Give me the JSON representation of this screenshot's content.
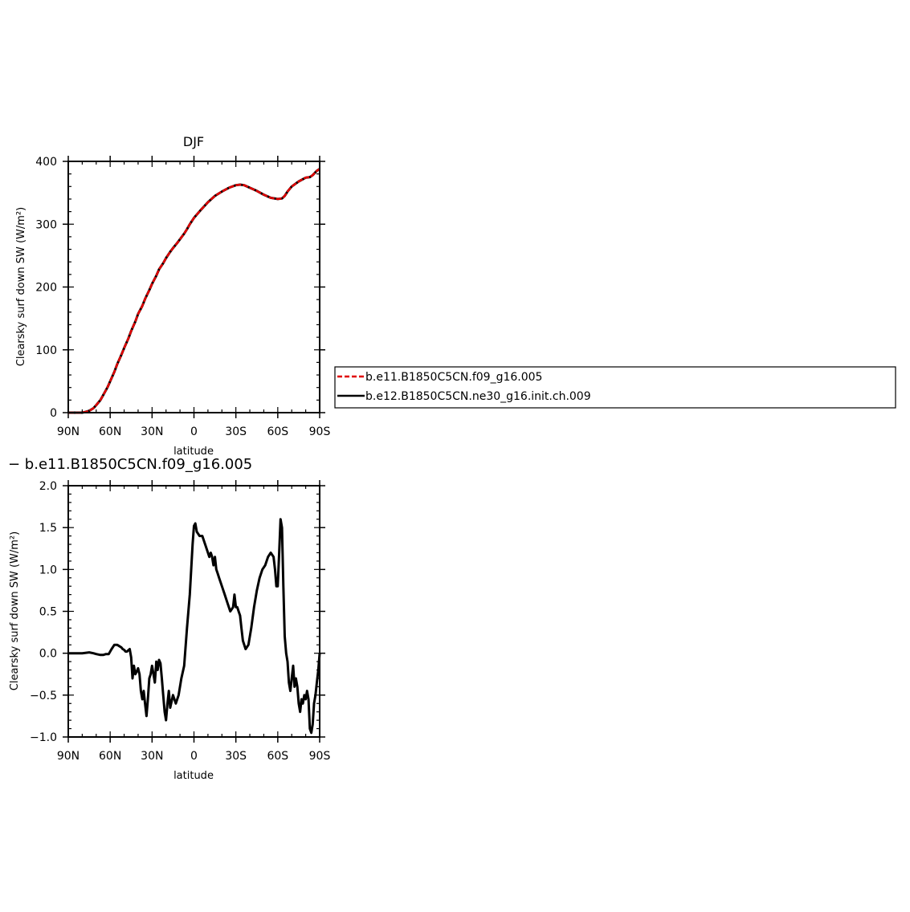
{
  "chart_data": [
    {
      "type": "line",
      "title": "DJF",
      "xlabel": "latitude",
      "ylabel": "Clearsky surf down SW (W/m²)",
      "xlim": [
        90,
        -90
      ],
      "ylim": [
        0,
        400
      ],
      "xticks": [
        90,
        60,
        30,
        0,
        -30,
        -60,
        -90
      ],
      "xtick_labels": [
        "90N",
        "60N",
        "30N",
        "0",
        "30S",
        "60S",
        "90S"
      ],
      "yticks": [
        0,
        100,
        200,
        300,
        400
      ],
      "ytick_labels": [
        "0",
        "100",
        "200",
        "300",
        "400"
      ],
      "legend_position": "right",
      "series": [
        {
          "name": "b.e11.B1850C5CN.f09_g16.005",
          "color": "#e00000",
          "dash": true,
          "x": [
            90,
            85,
            80,
            78,
            75,
            72,
            70,
            67,
            65,
            62,
            60,
            57,
            55,
            52,
            50,
            47,
            45,
            42,
            40,
            37,
            35,
            32,
            30,
            27,
            25,
            22,
            20,
            17,
            15,
            12,
            10,
            7,
            5,
            3,
            0,
            -5,
            -10,
            -15,
            -20,
            -25,
            -30,
            -33,
            -36,
            -40,
            -45,
            -50,
            -55,
            -60,
            -63,
            -65,
            -67,
            -70,
            -75,
            -80,
            -83,
            -85,
            -88,
            -90
          ],
          "y": [
            0,
            0,
            0,
            1,
            3,
            7,
            12,
            20,
            28,
            40,
            50,
            65,
            77,
            92,
            103,
            118,
            130,
            145,
            157,
            170,
            181,
            195,
            205,
            218,
            228,
            238,
            246,
            256,
            262,
            270,
            276,
            285,
            292,
            300,
            310,
            323,
            335,
            345,
            352,
            358,
            362,
            363,
            362,
            358,
            353,
            347,
            342,
            340,
            341,
            345,
            352,
            360,
            368,
            374,
            375,
            378,
            385,
            388
          ]
        },
        {
          "name": "b.e12.B1850C5CN.ne30_g16.init.ch.009",
          "color": "#000000",
          "dash": false,
          "x": [
            90,
            85,
            80,
            78,
            75,
            72,
            70,
            67,
            65,
            62,
            60,
            57,
            55,
            52,
            50,
            47,
            45,
            42,
            40,
            37,
            35,
            32,
            30,
            27,
            25,
            22,
            20,
            17,
            15,
            12,
            10,
            7,
            5,
            3,
            0,
            -5,
            -10,
            -15,
            -20,
            -25,
            -30,
            -33,
            -36,
            -40,
            -45,
            -50,
            -55,
            -60,
            -63,
            -65,
            -67,
            -70,
            -75,
            -80,
            -83,
            -85,
            -88,
            -90
          ],
          "y": [
            0,
            0,
            0,
            1,
            3,
            7,
            12,
            20,
            28,
            40,
            50,
            65,
            77,
            92,
            103,
            118,
            130,
            145,
            157,
            170,
            181,
            195,
            205,
            218,
            228,
            238,
            246,
            256,
            262,
            270,
            276,
            285,
            292,
            300,
            310,
            323,
            335,
            345,
            352,
            358,
            362,
            363,
            362,
            358,
            353,
            347,
            342,
            340,
            341,
            345,
            352,
            360,
            368,
            374,
            375,
            378,
            385,
            388
          ]
        }
      ]
    },
    {
      "type": "line",
      "title": "− b.e11.B1850C5CN.f09_g16.005",
      "xlabel": "latitude",
      "ylabel": "Clearsky surf down SW (W/m²)",
      "xlim": [
        90,
        -90
      ],
      "ylim": [
        -1.0,
        2.0
      ],
      "xticks": [
        90,
        60,
        30,
        0,
        -30,
        -60,
        -90
      ],
      "xtick_labels": [
        "90N",
        "60N",
        "30N",
        "0",
        "30S",
        "60S",
        "90S"
      ],
      "yticks": [
        -1.0,
        -0.5,
        0.0,
        0.5,
        1.0,
        1.5,
        2.0
      ],
      "ytick_labels": [
        "−1.0",
        "−0.5",
        "0.0",
        "0.5",
        "1.0",
        "1.5",
        "2.0"
      ],
      "series": [
        {
          "color": "#000000",
          "x": [
            90,
            85,
            80,
            75,
            72,
            70,
            67,
            65,
            63,
            61,
            59,
            57,
            55,
            53,
            52,
            51,
            50,
            49,
            48,
            46,
            45,
            44,
            43,
            42,
            41,
            40,
            39,
            38,
            37,
            36,
            35,
            34,
            33,
            32,
            31,
            30,
            29,
            28,
            27,
            26,
            25,
            24,
            23,
            22,
            21,
            20,
            19,
            18,
            17,
            15,
            13,
            11,
            9,
            7,
            5,
            3,
            1,
            0,
            -1,
            -2,
            -4,
            -6,
            -8,
            -10,
            -11,
            -12,
            -13,
            -14,
            -15,
            -16,
            -17,
            -18,
            -20,
            -22,
            -24,
            -26,
            -28,
            -29,
            -30,
            -31,
            -32,
            -33,
            -34,
            -35,
            -37,
            -39,
            -41,
            -43,
            -45,
            -47,
            -49,
            -51,
            -53,
            -55,
            -57,
            -58,
            -59,
            -60,
            -61,
            -62,
            -63,
            -64,
            -65,
            -66,
            -67,
            -68,
            -69,
            -70,
            -71,
            -72,
            -73,
            -74,
            -75,
            -76,
            -77,
            -78,
            -79,
            -80,
            -81,
            -82,
            -83,
            -84,
            -85,
            -86,
            -87,
            -88,
            -89,
            -90
          ],
          "y": [
            0.0,
            0.0,
            0.0,
            0.01,
            0.0,
            -0.01,
            -0.02,
            -0.02,
            -0.01,
            -0.01,
            0.05,
            0.1,
            0.1,
            0.08,
            0.07,
            0.05,
            0.04,
            0.02,
            0.02,
            0.05,
            -0.05,
            -0.3,
            -0.15,
            -0.25,
            -0.22,
            -0.18,
            -0.25,
            -0.45,
            -0.55,
            -0.45,
            -0.6,
            -0.75,
            -0.55,
            -0.3,
            -0.25,
            -0.15,
            -0.25,
            -0.35,
            -0.1,
            -0.2,
            -0.08,
            -0.12,
            -0.3,
            -0.5,
            -0.7,
            -0.8,
            -0.6,
            -0.45,
            -0.65,
            -0.5,
            -0.6,
            -0.5,
            -0.3,
            -0.15,
            0.3,
            0.7,
            1.3,
            1.52,
            1.55,
            1.45,
            1.4,
            1.4,
            1.3,
            1.2,
            1.15,
            1.2,
            1.15,
            1.05,
            1.15,
            1.0,
            0.95,
            0.9,
            0.8,
            0.7,
            0.6,
            0.5,
            0.55,
            0.7,
            0.55,
            0.55,
            0.5,
            0.45,
            0.3,
            0.15,
            0.05,
            0.1,
            0.3,
            0.55,
            0.75,
            0.9,
            1.0,
            1.05,
            1.15,
            1.2,
            1.15,
            1.0,
            0.8,
            0.8,
            1.2,
            1.6,
            1.5,
            0.8,
            0.2,
            0.0,
            -0.1,
            -0.35,
            -0.45,
            -0.3,
            -0.15,
            -0.4,
            -0.3,
            -0.4,
            -0.6,
            -0.7,
            -0.55,
            -0.6,
            -0.5,
            -0.55,
            -0.45,
            -0.55,
            -0.9,
            -0.95,
            -0.85,
            -0.6,
            -0.5,
            -0.35,
            -0.2,
            0.0
          ]
        }
      ]
    }
  ]
}
